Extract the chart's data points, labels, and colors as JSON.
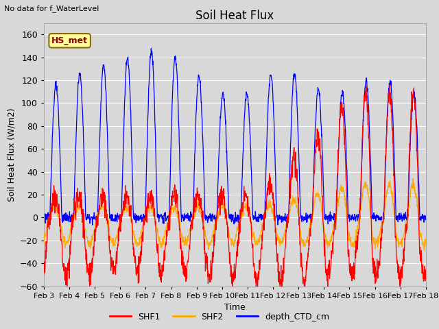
{
  "title": "Soil Heat Flux",
  "top_left_text": "No data for f_WaterLevel",
  "xlabel": "Time",
  "ylabel": "Soil Heat Flux (W/m2)",
  "ylim": [
    -60,
    170
  ],
  "yticks": [
    -60,
    -40,
    -20,
    0,
    20,
    40,
    60,
    80,
    100,
    120,
    140,
    160
  ],
  "xtick_labels": [
    "Feb 3",
    "Feb 4",
    "Feb 5",
    "Feb 6",
    "Feb 7",
    "Feb 8",
    "Feb 9",
    "Feb 10",
    "Feb 11",
    "Feb 12",
    "Feb 13",
    "Feb 14",
    "Feb 15",
    "Feb 16",
    "Feb 17",
    "Feb 18"
  ],
  "legend_entries": [
    "SHF1",
    "SHF2",
    "depth_CTD_cm"
  ],
  "line_colors": {
    "SHF1": "#ff0000",
    "SHF2": "#ffaa00",
    "depth_CTD_cm": "#0000ff"
  },
  "fig_bg_color": "#d8d8d8",
  "plot_bg_color": "#d8d8d8",
  "grid_color": "#ffffff",
  "annotation_box_color": "#ffff99",
  "annotation_text": "HS_met",
  "annotation_text_color": "#8b0000",
  "annotation_border_color": "#8b6914"
}
